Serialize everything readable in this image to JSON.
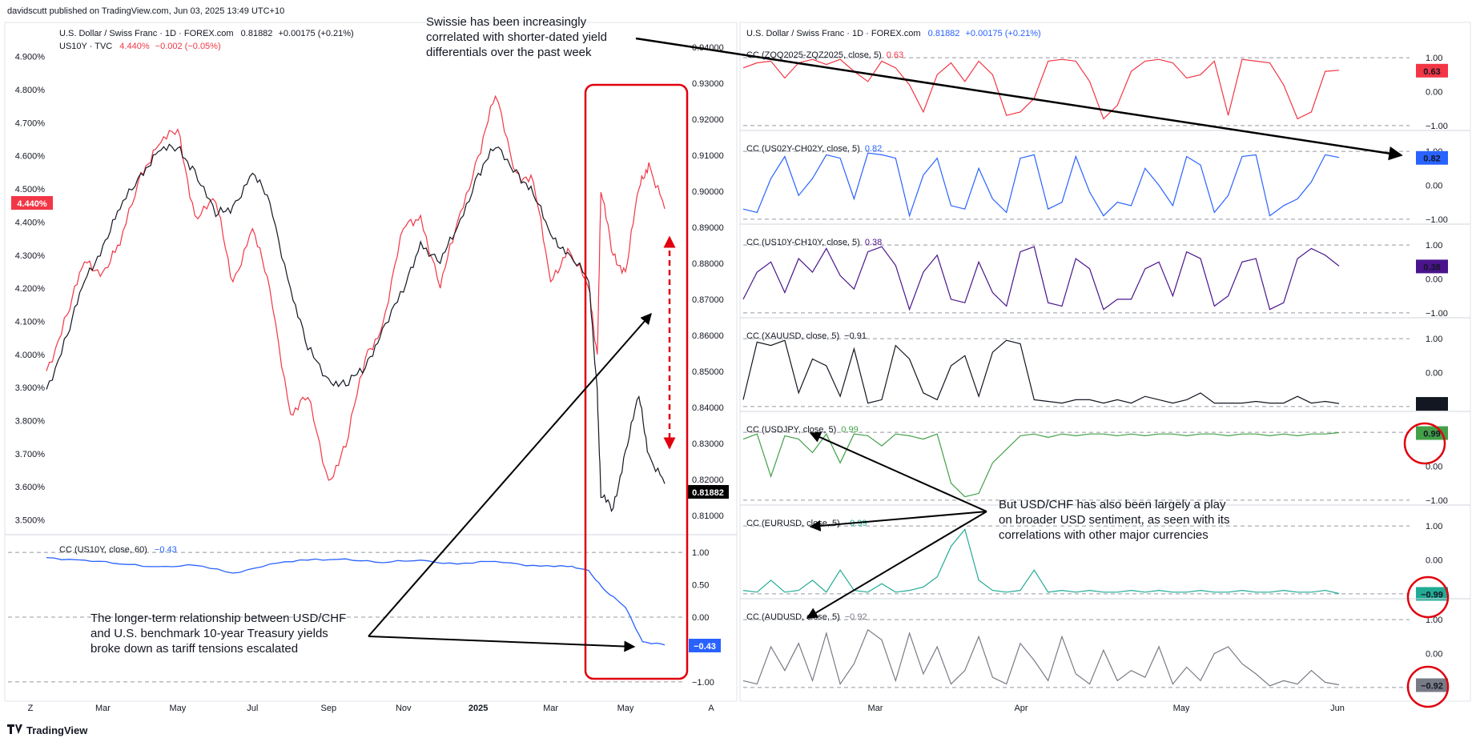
{
  "header": {
    "publisher": "davidscutt published on TradingView.com, Jun 03, 2025 13:49 UTC+10"
  },
  "footer": {
    "brand": "TradingView"
  },
  "colors": {
    "price": "#131722",
    "yield": "#f23645",
    "blue": "#2962ff",
    "purple": "#4a148c",
    "green": "#43a047",
    "teal": "#22ab94",
    "gray": "#787b86",
    "highlight": "#e0000f"
  },
  "left_panel": {
    "legend_line1": {
      "text": "U.S. Dollar / Swiss Franc · 1D · FOREX.com",
      "value": "0.81882",
      "change": "+0.00175 (+0.21%)"
    },
    "legend_line2": {
      "text": "US10Y · TVC",
      "value": "4.440%",
      "change": "−0.002 (−0.05%)"
    },
    "yield_last_label": "4.440%",
    "price_last_label": "0.81882",
    "x_ticks": [
      "Mar",
      "May",
      "Jul",
      "Sep",
      "Nov",
      "2025",
      "Mar",
      "May"
    ],
    "corner_left": "Z",
    "corner_right": "A",
    "sub_legend": {
      "text": "CC (US10Y, close, 60)",
      "value": "−0.43"
    },
    "sub_last_label": "−0.43"
  },
  "right_panel": {
    "legend": {
      "text": "U.S. Dollar / Swiss Franc · 1D · FOREX.com",
      "value": "0.81882",
      "change": "+0.00175 (+0.21%)"
    },
    "x_ticks": [
      "Mar",
      "Apr",
      "May",
      "Jun"
    ],
    "panes": [
      {
        "legend": "CC (ZQQ2025-ZQZ2025, close, 5)",
        "value": "0.63",
        "label": "0.63"
      },
      {
        "legend": "CC (US02Y-CH02Y, close, 5)",
        "value": "0.82",
        "label": "0.82"
      },
      {
        "legend": "CC (US10Y-CH10Y, close, 5)",
        "value": "0.38",
        "label": "0.38"
      },
      {
        "legend": "CC (XAUUSD, close, 5)",
        "value": "−0.91",
        "label": "−0.91"
      },
      {
        "legend": "CC (USDJPY, close, 5)",
        "value": "0.99",
        "label": "0.99"
      },
      {
        "legend": "CC (EURUSD, close, 5)",
        "value": "−0.99",
        "label": "−0.99"
      },
      {
        "legend": "CC (AUDUSD, close, 5)",
        "value": "−0.92",
        "label": "−0.92"
      }
    ]
  },
  "annotations": {
    "top": [
      "Swissie has been increasingly",
      "correlated with shorter-dated yield",
      "differentials over the past week"
    ],
    "left": [
      "The longer-term relationship between USD/CHF",
      "and U.S. benchmark 10-year Treasury yields",
      "broke down as tariff tensions escalated"
    ],
    "right": [
      "But USD/CHF has also been largely a play",
      "on broader USD sentiment, as seen with its",
      "correlations with other major currencies"
    ]
  },
  "chart_data": [
    {
      "type": "line",
      "series": [
        {
          "name": "U.S. Dollar / Swiss Franc",
          "x": [
            "2024-01-15",
            "2024-02-01",
            "2024-02-15",
            "2024-03-01",
            "2024-03-15",
            "2024-04-01",
            "2024-04-15",
            "2024-05-01",
            "2024-05-15",
            "2024-06-01",
            "2024-06-15",
            "2024-07-01",
            "2024-07-15",
            "2024-08-01",
            "2024-08-15",
            "2024-09-01",
            "2024-09-15",
            "2024-10-01",
            "2024-10-15",
            "2024-11-01",
            "2024-11-15",
            "2024-12-01",
            "2024-12-15",
            "2025-01-01",
            "2025-01-15",
            "2025-02-01",
            "2025-02-15",
            "2025-03-01",
            "2025-03-15",
            "2025-04-01",
            "2025-04-08",
            "2025-04-11",
            "2025-04-21",
            "2025-05-01",
            "2025-05-12",
            "2025-05-20",
            "2025-06-02"
          ],
          "values": [
            0.845,
            0.86,
            0.875,
            0.885,
            0.895,
            0.905,
            0.911,
            0.912,
            0.906,
            0.893,
            0.896,
            0.905,
            0.897,
            0.873,
            0.856,
            0.848,
            0.846,
            0.851,
            0.862,
            0.872,
            0.886,
            0.88,
            0.89,
            0.905,
            0.912,
            0.906,
            0.899,
            0.888,
            0.883,
            0.875,
            0.845,
            0.815,
            0.812,
            0.828,
            0.843,
            0.827,
            0.8188
          ]
        },
        {
          "name": "US10Y",
          "x": [
            "2024-01-15",
            "2024-02-01",
            "2024-02-15",
            "2024-03-01",
            "2024-03-15",
            "2024-04-01",
            "2024-04-15",
            "2024-05-01",
            "2024-05-15",
            "2024-06-01",
            "2024-06-15",
            "2024-07-01",
            "2024-07-15",
            "2024-08-01",
            "2024-08-15",
            "2024-09-01",
            "2024-09-15",
            "2024-10-01",
            "2024-10-15",
            "2024-11-01",
            "2024-11-15",
            "2024-12-01",
            "2024-12-15",
            "2025-01-01",
            "2025-01-15",
            "2025-02-01",
            "2025-02-15",
            "2025-03-01",
            "2025-03-15",
            "2025-04-01",
            "2025-04-08",
            "2025-04-11",
            "2025-04-21",
            "2025-05-01",
            "2025-05-12",
            "2025-05-20",
            "2025-06-02"
          ],
          "values": [
            3.95,
            4.12,
            4.28,
            4.25,
            4.33,
            4.55,
            4.63,
            4.68,
            4.42,
            4.46,
            4.22,
            4.38,
            4.2,
            3.82,
            3.87,
            3.62,
            3.72,
            3.99,
            4.09,
            4.38,
            4.42,
            4.2,
            4.4,
            4.6,
            4.78,
            4.55,
            4.52,
            4.22,
            4.32,
            4.2,
            4.0,
            4.49,
            4.3,
            4.25,
            4.5,
            4.58,
            4.44
          ]
        }
      ],
      "y_left_ticks": [
        "4.900%",
        "4.800%",
        "4.700%",
        "4.600%",
        "4.500%",
        "4.400%",
        "4.300%",
        "4.200%",
        "4.100%",
        "4.000%",
        "3.900%",
        "3.800%",
        "3.700%",
        "3.600%",
        "3.500%"
      ],
      "y_right_ticks": [
        "0.94000",
        "0.93000",
        "0.92000",
        "0.91000",
        "0.90000",
        "0.89000",
        "0.88000",
        "0.87000",
        "0.86000",
        "0.85000",
        "0.84000",
        "0.83000",
        "0.82000",
        "0.81000"
      ],
      "ylim_left": [
        3.47,
        4.95
      ],
      "ylim_right": [
        0.806,
        0.942
      ]
    },
    {
      "type": "line",
      "series": [
        {
          "name": "CC (US10Y, close, 60)",
          "x": [
            "2024-01-15",
            "2024-02-15",
            "2024-03-15",
            "2024-04-15",
            "2024-05-15",
            "2024-06-15",
            "2024-07-15",
            "2024-08-15",
            "2024-09-15",
            "2024-10-15",
            "2024-11-15",
            "2024-12-15",
            "2025-01-15",
            "2025-02-15",
            "2025-03-15",
            "2025-04-01",
            "2025-04-15",
            "2025-05-01",
            "2025-05-15",
            "2025-06-02"
          ],
          "values": [
            0.92,
            0.88,
            0.82,
            0.78,
            0.8,
            0.68,
            0.82,
            0.88,
            0.9,
            0.84,
            0.88,
            0.82,
            0.86,
            0.8,
            0.78,
            0.72,
            0.4,
            0.15,
            -0.38,
            -0.43
          ]
        }
      ],
      "y_ticks": [
        "1.00",
        "0.50",
        "0.00",
        "−1.00"
      ],
      "ylim": [
        -1.1,
        1.1
      ]
    },
    {
      "type": "line",
      "x_ticks": [
        "Mar",
        "Apr",
        "May",
        "Jun"
      ],
      "y_ticks": [
        "1.00",
        "0.00",
        "−1.00"
      ],
      "series": [
        {
          "name": "CC (ZQQ2025-ZQZ2025, close, 5)",
          "values": [
            0.7,
            0.85,
            0.9,
            0.4,
            0.85,
            0.95,
            0.8,
            0.95,
            0.6,
            0.3,
            0.9,
            0.7,
            0.2,
            -0.6,
            0.5,
            0.85,
            0.3,
            0.9,
            0.5,
            -0.7,
            -0.6,
            -0.2,
            0.9,
            0.95,
            0.9,
            0.3,
            -0.8,
            -0.4,
            0.6,
            0.9,
            0.95,
            0.85,
            0.4,
            0.5,
            0.9,
            -0.7,
            0.95,
            0.9,
            0.85,
            0.2,
            -0.8,
            -0.6,
            0.6,
            0.63
          ]
        },
        {
          "name": "CC (US02Y-CH02Y, close, 5)",
          "values": [
            -0.7,
            -0.8,
            0.2,
            0.85,
            -0.3,
            0.2,
            0.9,
            0.8,
            -0.4,
            0.95,
            0.9,
            0.8,
            -0.9,
            0.3,
            0.8,
            -0.6,
            -0.7,
            0.5,
            -0.4,
            -0.8,
            0.8,
            0.9,
            -0.7,
            -0.5,
            0.85,
            -0.2,
            -0.9,
            -0.5,
            -0.6,
            0.5,
            0.0,
            -0.6,
            0.85,
            0.6,
            -0.8,
            -0.3,
            0.85,
            0.9,
            -0.9,
            -0.6,
            -0.4,
            0.1,
            0.9,
            0.82
          ]
        },
        {
          "name": "CC (US10Y-CH10Y, close, 5)",
          "values": [
            -0.6,
            0.2,
            0.5,
            -0.4,
            0.6,
            0.2,
            0.9,
            0.1,
            -0.3,
            0.8,
            0.95,
            0.4,
            -0.9,
            0.2,
            0.7,
            -0.6,
            -0.7,
            0.5,
            -0.4,
            -0.8,
            0.8,
            0.95,
            -0.7,
            -0.8,
            0.6,
            0.3,
            -0.9,
            -0.6,
            -0.6,
            0.3,
            0.5,
            -0.5,
            0.8,
            0.6,
            -0.8,
            -0.5,
            0.5,
            0.6,
            -0.9,
            -0.7,
            0.6,
            0.9,
            0.7,
            0.38
          ]
        },
        {
          "name": "CC (XAUUSD, close, 5)",
          "values": [
            -0.8,
            0.9,
            0.8,
            0.95,
            -0.6,
            0.4,
            0.2,
            -0.7,
            0.7,
            -0.9,
            -0.8,
            0.8,
            0.4,
            -0.6,
            -0.8,
            0.2,
            0.5,
            -0.7,
            0.6,
            0.95,
            0.85,
            -0.8,
            -0.85,
            -0.9,
            -0.8,
            -0.8,
            -0.9,
            -0.8,
            -0.9,
            -0.7,
            -0.8,
            -0.9,
            -0.8,
            -0.6,
            -0.9,
            -0.9,
            -0.9,
            -0.85,
            -0.9,
            -0.9,
            -0.7,
            -0.9,
            -0.85,
            -0.91
          ]
        },
        {
          "name": "CC (USDJPY, close, 5)",
          "values": [
            0.8,
            0.95,
            -0.3,
            0.9,
            0.8,
            0.4,
            0.95,
            0.1,
            0.95,
            0.9,
            0.6,
            0.95,
            0.9,
            0.8,
            0.95,
            -0.5,
            -0.9,
            -0.8,
            0.1,
            0.5,
            0.9,
            0.95,
            0.85,
            0.95,
            0.9,
            0.95,
            0.95,
            0.9,
            0.95,
            0.9,
            0.95,
            0.95,
            0.9,
            0.95,
            0.95,
            0.9,
            0.95,
            0.95,
            0.9,
            0.95,
            0.9,
            0.95,
            0.95,
            0.99
          ]
        },
        {
          "name": "CC (EURUSD, close, 5)",
          "values": [
            -0.9,
            -0.95,
            -0.6,
            -0.95,
            -0.9,
            -0.6,
            -0.95,
            -0.3,
            -0.9,
            -0.95,
            -0.7,
            -0.95,
            -0.9,
            -0.8,
            -0.5,
            0.4,
            0.9,
            -0.6,
            -0.9,
            -0.95,
            -0.9,
            -0.3,
            -0.95,
            -0.9,
            -0.95,
            -0.9,
            -0.95,
            -0.95,
            -0.9,
            -0.95,
            -0.9,
            -0.95,
            -0.95,
            -0.9,
            -0.95,
            -0.95,
            -0.9,
            -0.95,
            -0.95,
            -0.9,
            -0.95,
            -0.95,
            -0.9,
            -0.99
          ]
        },
        {
          "name": "CC (AUDUSD, close, 5)",
          "values": [
            -0.8,
            -0.9,
            0.2,
            -0.5,
            0.3,
            -0.8,
            0.6,
            -0.9,
            -0.3,
            0.7,
            0.4,
            -0.8,
            0.6,
            -0.6,
            0.2,
            -0.9,
            -0.5,
            0.5,
            -0.7,
            -0.9,
            0.3,
            -0.2,
            -0.8,
            0.5,
            -0.6,
            -0.9,
            0.1,
            -0.8,
            -0.5,
            -0.7,
            0.2,
            -0.9,
            -0.4,
            -0.8,
            0.0,
            0.2,
            -0.3,
            -0.6,
            -0.95,
            -0.8,
            -0.9,
            -0.5,
            -0.85,
            -0.92
          ]
        }
      ]
    }
  ]
}
